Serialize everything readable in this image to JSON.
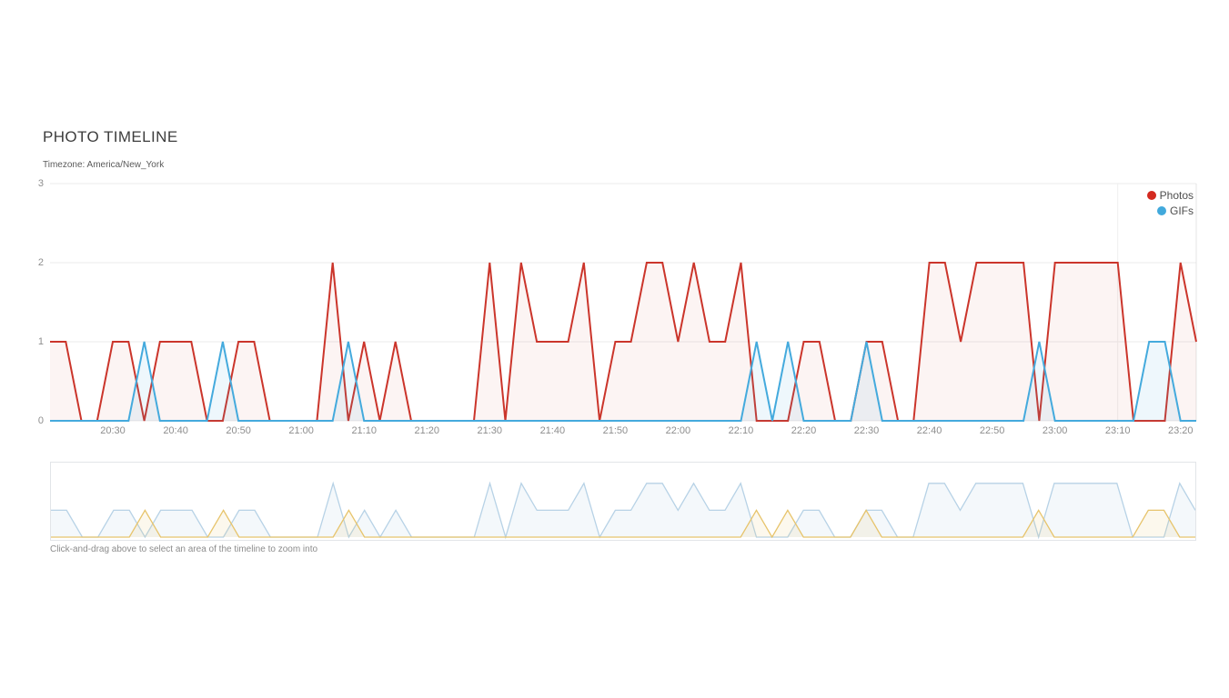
{
  "page": {
    "title": "PHOTO TIMELINE",
    "subtitle": "Timezone: America/New_York"
  },
  "legend": {
    "items": [
      {
        "label": "Photos",
        "color": "#d32a20"
      },
      {
        "label": "GIFs",
        "color": "#41a9dc"
      }
    ]
  },
  "hint": "Click-and-drag above to select an area of the timeline to zoom into",
  "chart_data": {
    "type": "line",
    "title": "PHOTO TIMELINE",
    "subtitle": "Timezone: America/New_York",
    "x_start": "20:20",
    "x_step_minutes": 2.5,
    "x_tick_labels": [
      "20:30",
      "20:40",
      "20:50",
      "21:00",
      "21:10",
      "21:20",
      "21:30",
      "21:40",
      "21:50",
      "22:00",
      "22:10",
      "22:20",
      "22:30",
      "22:40",
      "22:50",
      "23:00",
      "23:10",
      "23:20"
    ],
    "vline_time": "23:10",
    "ylim": [
      0,
      3
    ],
    "y_ticks": [
      0,
      1,
      2,
      3
    ],
    "grid": true,
    "legend_position": "top-right",
    "series": [
      {
        "name": "Photos",
        "color": "#cb352b",
        "fill": "rgba(203,53,43,0.055)",
        "values": [
          1,
          1,
          0,
          0,
          1,
          1,
          0,
          1,
          1,
          1,
          0,
          0,
          1,
          1,
          0,
          0,
          0,
          0,
          2,
          0,
          1,
          0,
          1,
          0,
          0,
          0,
          0,
          0,
          2,
          0,
          2,
          1,
          1,
          1,
          2,
          0,
          1,
          1,
          2,
          2,
          1,
          2,
          1,
          1,
          2,
          0,
          0,
          0,
          1,
          1,
          0,
          0,
          1,
          1,
          0,
          0,
          2,
          2,
          1,
          2,
          2,
          2,
          2,
          0,
          2,
          2,
          2,
          2,
          2,
          0,
          0,
          0,
          2,
          1
        ]
      },
      {
        "name": "GIFs",
        "color": "#44aadd",
        "fill": "rgba(68,170,221,0.09)",
        "values": [
          0,
          0,
          0,
          0,
          0,
          0,
          1,
          0,
          0,
          0,
          0,
          1,
          0,
          0,
          0,
          0,
          0,
          0,
          0,
          1,
          0,
          0,
          0,
          0,
          0,
          0,
          0,
          0,
          0,
          0,
          0,
          0,
          0,
          0,
          0,
          0,
          0,
          0,
          0,
          0,
          0,
          0,
          0,
          0,
          0,
          1,
          0,
          1,
          0,
          0,
          0,
          0,
          1,
          0,
          0,
          0,
          0,
          0,
          0,
          0,
          0,
          0,
          0,
          1,
          0,
          0,
          0,
          0,
          0,
          0,
          1,
          1,
          0,
          0
        ]
      }
    ],
    "navigator": {
      "ylim": [
        0,
        2.4
      ],
      "series_colors": {
        "Photos": "#b7d2e6",
        "GIFs": "#e7c46c"
      },
      "series_fills": {
        "Photos": "rgba(150,185,215,0.10)",
        "GIFs": "rgba(231,196,108,0.12)"
      }
    }
  }
}
